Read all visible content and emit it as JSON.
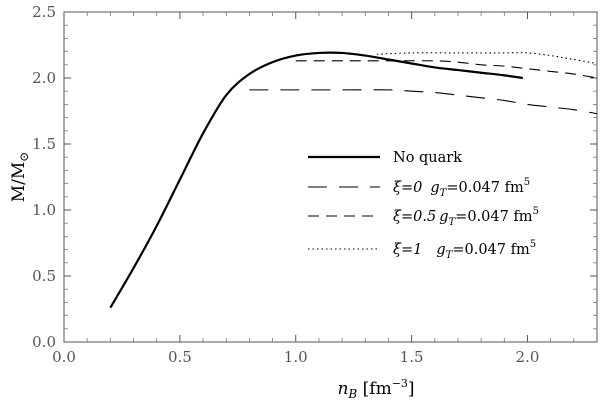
{
  "chart_data": {
    "type": "line",
    "xlabel": "n_B [fm^-3]",
    "ylabel": "M/M_☉",
    "xlim": [
      0.0,
      2.3
    ],
    "ylim": [
      0.0,
      2.5
    ],
    "xticks": [
      {
        "value": 0.0,
        "label": "0.0"
      },
      {
        "value": 0.5,
        "label": "0.5"
      },
      {
        "value": 1.0,
        "label": "1.0"
      },
      {
        "value": 1.5,
        "label": "1.5"
      },
      {
        "value": 2.0,
        "label": "2.0"
      }
    ],
    "yticks": [
      {
        "value": 0.0,
        "label": "0.0"
      },
      {
        "value": 0.5,
        "label": "0.5"
      },
      {
        "value": 1.0,
        "label": "1.0"
      },
      {
        "value": 1.5,
        "label": "1.5"
      },
      {
        "value": 2.0,
        "label": "2.0"
      },
      {
        "value": 2.5,
        "label": "2.5"
      }
    ],
    "grid": false,
    "legend_position": "center-right",
    "series": [
      {
        "name": "No quark",
        "style": "solid",
        "x": [
          0.2,
          0.3,
          0.4,
          0.5,
          0.6,
          0.7,
          0.8,
          0.9,
          1.0,
          1.1,
          1.2,
          1.3,
          1.4,
          1.5,
          1.6,
          1.7,
          1.8,
          1.9,
          1.98
        ],
        "y": [
          0.26,
          0.56,
          0.88,
          1.23,
          1.58,
          1.87,
          2.03,
          2.12,
          2.17,
          2.19,
          2.19,
          2.17,
          2.14,
          2.11,
          2.08,
          2.06,
          2.04,
          2.02,
          2.0
        ]
      },
      {
        "name": "ξ=0 g_T=0.047 fm^5",
        "style": "long-dash",
        "x": [
          0.8,
          1.0,
          1.2,
          1.4,
          1.5,
          1.6,
          1.7,
          1.8,
          1.9,
          2.0,
          2.1,
          2.2,
          2.3
        ],
        "y": [
          1.91,
          1.91,
          1.91,
          1.91,
          1.9,
          1.89,
          1.87,
          1.85,
          1.83,
          1.8,
          1.78,
          1.76,
          1.73
        ]
      },
      {
        "name": "ξ=0.5 g_T=0.047 fm^5",
        "style": "medium-dash",
        "x": [
          1.0,
          1.2,
          1.4,
          1.6,
          1.7,
          1.8,
          1.9,
          2.0,
          2.1,
          2.2,
          2.3
        ],
        "y": [
          2.13,
          2.13,
          2.13,
          2.13,
          2.12,
          2.1,
          2.09,
          2.07,
          2.05,
          2.03,
          2.0
        ]
      },
      {
        "name": "ξ=1 g_T=0.047 fm^5",
        "style": "dotted",
        "x": [
          1.35,
          1.5,
          1.7,
          1.9,
          2.0,
          2.1,
          2.2,
          2.3
        ],
        "y": [
          2.18,
          2.19,
          2.19,
          2.19,
          2.19,
          2.17,
          2.14,
          2.11
        ]
      }
    ]
  },
  "legend": {
    "items": [
      {
        "style": "solid",
        "label": "No quark"
      },
      {
        "style": "long-dash",
        "xi_label": "ξ=0",
        "g_label": "g",
        "g_sub": "T",
        "g_rest": "=0.047 fm",
        "g_sup": "5"
      },
      {
        "style": "medium-dash",
        "xi_label": "ξ=0.5",
        "g_label": "g",
        "g_sub": "T",
        "g_rest": "=0.047 fm",
        "g_sup": "5"
      },
      {
        "style": "dotted",
        "xi_label": "ξ=1",
        "g_label": "g",
        "g_sub": "T",
        "g_rest": "=0.047 fm",
        "g_sup": "5"
      }
    ]
  },
  "axis_text": {
    "y_main": "M/M",
    "y_sub": "⊙",
    "x_main": "n",
    "x_sub": "B",
    "x_unit_open": " [fm",
    "x_unit_sup": "−3",
    "x_unit_close": "]"
  }
}
